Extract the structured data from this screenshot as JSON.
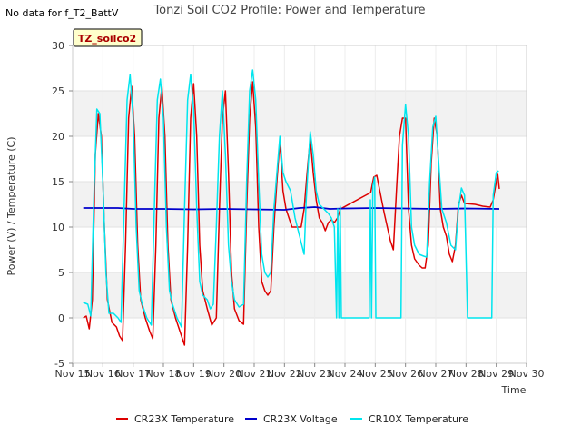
{
  "chart_data": {
    "type": "line",
    "title": "Tonzi Soil CO2 Profile: Power and Temperature",
    "note": "No data for f_T2_BattV",
    "badge": "TZ_soilco2",
    "xlabel": "Time",
    "ylabel": "Power (V) / Temperature (C)",
    "xlim": [
      15,
      30
    ],
    "ylim": [
      -5,
      30
    ],
    "x_ticks": [
      15,
      16,
      17,
      18,
      19,
      20,
      21,
      22,
      23,
      24,
      25,
      26,
      27,
      28,
      29,
      30
    ],
    "x_tick_labels": [
      "Nov 15",
      "Nov 16",
      "Nov 17",
      "Nov 18",
      "Nov 19",
      "Nov 20",
      "Nov 21",
      "Nov 22",
      "Nov 23",
      "Nov 24",
      "Nov 25",
      "Nov 26",
      "Nov 27",
      "Nov 28",
      "Nov 29",
      "Nov 30"
    ],
    "y_ticks": [
      -5,
      0,
      5,
      10,
      15,
      20,
      25,
      30
    ],
    "y_tick_labels": [
      "-5",
      "0",
      "5",
      "10",
      "15",
      "20",
      "25",
      "30"
    ],
    "legend_position": "bottom",
    "grid_bands": true,
    "series": [
      {
        "name": "CR23X Temperature",
        "color": "#dd0000",
        "points": [
          [
            15.35,
            0
          ],
          [
            15.45,
            0.2
          ],
          [
            15.55,
            -1.2
          ],
          [
            15.65,
            2
          ],
          [
            15.75,
            18
          ],
          [
            15.85,
            22.5
          ],
          [
            15.95,
            20
          ],
          [
            16.05,
            10
          ],
          [
            16.15,
            2
          ],
          [
            16.3,
            -0.5
          ],
          [
            16.45,
            -1
          ],
          [
            16.55,
            -2
          ],
          [
            16.65,
            -2.5
          ],
          [
            16.75,
            8
          ],
          [
            16.85,
            22
          ],
          [
            16.95,
            25.5
          ],
          [
            17.05,
            20
          ],
          [
            17.15,
            8
          ],
          [
            17.25,
            2
          ],
          [
            17.4,
            0
          ],
          [
            17.55,
            -1.5
          ],
          [
            17.65,
            -2.3
          ],
          [
            17.75,
            8
          ],
          [
            17.85,
            22
          ],
          [
            17.95,
            25.5
          ],
          [
            18.05,
            20
          ],
          [
            18.15,
            8
          ],
          [
            18.25,
            2
          ],
          [
            18.4,
            0
          ],
          [
            18.55,
            -1.5
          ],
          [
            18.7,
            -3
          ],
          [
            18.8,
            8
          ],
          [
            18.9,
            22
          ],
          [
            19.0,
            25.8
          ],
          [
            19.1,
            20
          ],
          [
            19.2,
            8
          ],
          [
            19.3,
            3
          ],
          [
            19.45,
            1
          ],
          [
            19.6,
            -0.8
          ],
          [
            19.75,
            0
          ],
          [
            19.85,
            12
          ],
          [
            19.95,
            22
          ],
          [
            20.05,
            25
          ],
          [
            20.15,
            16
          ],
          [
            20.25,
            5
          ],
          [
            20.35,
            1
          ],
          [
            20.5,
            -0.3
          ],
          [
            20.65,
            -0.7
          ],
          [
            20.75,
            12
          ],
          [
            20.85,
            22
          ],
          [
            20.95,
            26
          ],
          [
            21.05,
            21
          ],
          [
            21.15,
            10
          ],
          [
            21.25,
            4
          ],
          [
            21.35,
            3
          ],
          [
            21.45,
            2.5
          ],
          [
            21.55,
            3
          ],
          [
            21.65,
            10
          ],
          [
            21.75,
            15
          ],
          [
            21.85,
            19.5
          ],
          [
            21.95,
            14
          ],
          [
            22.05,
            12
          ],
          [
            22.15,
            11
          ],
          [
            22.25,
            10
          ],
          [
            22.4,
            10
          ],
          [
            22.55,
            10
          ],
          [
            22.65,
            12
          ],
          [
            22.75,
            16
          ],
          [
            22.85,
            19.8
          ],
          [
            22.95,
            16
          ],
          [
            23.05,
            13
          ],
          [
            23.15,
            11
          ],
          [
            23.25,
            10.5
          ],
          [
            23.35,
            9.6
          ],
          [
            23.45,
            10.5
          ],
          [
            23.55,
            10.8
          ],
          [
            23.65,
            10.5
          ],
          [
            23.75,
            11
          ],
          [
            23.85,
            12
          ],
          [
            24.85,
            13.8
          ],
          [
            24.95,
            15.5
          ],
          [
            25.05,
            15.7
          ],
          [
            25.3,
            11.5
          ],
          [
            25.5,
            8.5
          ],
          [
            25.6,
            7.5
          ],
          [
            25.7,
            14
          ],
          [
            25.8,
            20
          ],
          [
            25.9,
            22
          ],
          [
            26.0,
            22
          ],
          [
            26.1,
            12
          ],
          [
            26.2,
            8
          ],
          [
            26.3,
            6.5
          ],
          [
            26.45,
            5.8
          ],
          [
            26.55,
            5.5
          ],
          [
            26.65,
            5.5
          ],
          [
            26.75,
            8
          ],
          [
            26.85,
            17
          ],
          [
            26.95,
            22
          ],
          [
            27.05,
            20
          ],
          [
            27.15,
            12
          ],
          [
            27.25,
            10
          ],
          [
            27.35,
            9
          ],
          [
            27.45,
            7
          ],
          [
            27.55,
            6.2
          ],
          [
            27.65,
            8
          ],
          [
            27.75,
            12.5
          ],
          [
            27.85,
            13.5
          ],
          [
            27.95,
            12.6
          ],
          [
            28.3,
            12.5
          ],
          [
            28.55,
            12.3
          ],
          [
            28.8,
            12.2
          ],
          [
            28.9,
            13
          ],
          [
            29.0,
            15
          ],
          [
            29.05,
            15.8
          ],
          [
            29.1,
            14.2
          ]
        ]
      },
      {
        "name": "CR23X Voltage",
        "color": "#0000cc",
        "points": [
          [
            15.35,
            12.1
          ],
          [
            16.5,
            12.1
          ],
          [
            17.0,
            12.0
          ],
          [
            18.0,
            12.0
          ],
          [
            19.0,
            11.95
          ],
          [
            20.0,
            12.0
          ],
          [
            21.0,
            11.95
          ],
          [
            22.0,
            11.9
          ],
          [
            22.5,
            12.1
          ],
          [
            23.0,
            12.2
          ],
          [
            23.5,
            12.0
          ],
          [
            24.0,
            12.05
          ],
          [
            25.0,
            12.1
          ],
          [
            26.0,
            12.05
          ],
          [
            27.0,
            12.0
          ],
          [
            28.0,
            12.05
          ],
          [
            29.1,
            12.0
          ]
        ]
      },
      {
        "name": "CR10X Temperature",
        "color": "#00e5ee",
        "points": [
          [
            15.35,
            1.7
          ],
          [
            15.5,
            1.5
          ],
          [
            15.6,
            0.2
          ],
          [
            15.7,
            13
          ],
          [
            15.8,
            23
          ],
          [
            15.9,
            22.5
          ],
          [
            16.0,
            15
          ],
          [
            16.1,
            5
          ],
          [
            16.2,
            0.5
          ],
          [
            16.35,
            0.5
          ],
          [
            16.5,
            0
          ],
          [
            16.6,
            -0.5
          ],
          [
            16.7,
            12
          ],
          [
            16.8,
            24
          ],
          [
            16.9,
            26.8
          ],
          [
            17.0,
            22
          ],
          [
            17.1,
            10
          ],
          [
            17.2,
            3
          ],
          [
            17.3,
            1.5
          ],
          [
            17.45,
            0
          ],
          [
            17.6,
            -0.8
          ],
          [
            17.7,
            12
          ],
          [
            17.8,
            24
          ],
          [
            17.9,
            26.3
          ],
          [
            18.0,
            22
          ],
          [
            18.1,
            10
          ],
          [
            18.2,
            3
          ],
          [
            18.3,
            1.5
          ],
          [
            18.45,
            0
          ],
          [
            18.6,
            -1
          ],
          [
            18.7,
            12
          ],
          [
            18.8,
            24
          ],
          [
            18.9,
            26.8
          ],
          [
            19.0,
            23
          ],
          [
            19.1,
            12
          ],
          [
            19.2,
            4
          ],
          [
            19.3,
            2.5
          ],
          [
            19.45,
            2
          ],
          [
            19.55,
            1
          ],
          [
            19.65,
            1.5
          ],
          [
            19.75,
            10
          ],
          [
            19.85,
            20
          ],
          [
            19.95,
            25
          ],
          [
            20.05,
            18
          ],
          [
            20.15,
            8
          ],
          [
            20.25,
            4
          ],
          [
            20.35,
            2
          ],
          [
            20.5,
            1.2
          ],
          [
            20.65,
            1.5
          ],
          [
            20.75,
            15
          ],
          [
            20.85,
            25
          ],
          [
            20.95,
            27.3
          ],
          [
            21.05,
            24
          ],
          [
            21.15,
            15
          ],
          [
            21.25,
            7
          ],
          [
            21.35,
            5
          ],
          [
            21.45,
            4.5
          ],
          [
            21.55,
            5
          ],
          [
            21.65,
            12
          ],
          [
            21.75,
            16
          ],
          [
            21.85,
            20
          ],
          [
            21.95,
            16
          ],
          [
            22.05,
            15
          ],
          [
            22.2,
            14
          ],
          [
            22.35,
            11
          ],
          [
            22.5,
            9
          ],
          [
            22.65,
            7
          ],
          [
            22.72,
            13
          ],
          [
            22.85,
            20.5
          ],
          [
            22.95,
            18
          ],
          [
            23.05,
            14
          ],
          [
            23.15,
            12.5
          ],
          [
            23.3,
            12
          ],
          [
            23.45,
            11.5
          ],
          [
            23.55,
            11
          ],
          [
            23.65,
            10
          ],
          [
            23.72,
            0
          ],
          [
            23.76,
            12
          ],
          [
            23.8,
            0
          ],
          [
            23.84,
            12.3
          ],
          [
            23.88,
            0
          ],
          [
            24.8,
            0
          ],
          [
            24.84,
            13
          ],
          [
            24.88,
            0
          ],
          [
            24.92,
            14.5
          ],
          [
            24.98,
            15.5
          ],
          [
            25.02,
            0
          ],
          [
            25.85,
            0
          ],
          [
            25.9,
            19
          ],
          [
            26.0,
            23.5
          ],
          [
            26.1,
            20
          ],
          [
            26.2,
            10
          ],
          [
            26.3,
            8
          ],
          [
            26.45,
            7
          ],
          [
            26.6,
            6.8
          ],
          [
            26.7,
            6.7
          ],
          [
            26.8,
            15
          ],
          [
            26.9,
            21
          ],
          [
            27.0,
            22.2
          ],
          [
            27.1,
            17
          ],
          [
            27.2,
            12
          ],
          [
            27.35,
            10.5
          ],
          [
            27.5,
            8
          ],
          [
            27.65,
            7.5
          ],
          [
            27.75,
            12
          ],
          [
            27.85,
            14.3
          ],
          [
            27.95,
            13.5
          ],
          [
            28.05,
            0
          ],
          [
            28.85,
            0
          ],
          [
            28.9,
            13.5
          ],
          [
            29.0,
            16
          ],
          [
            29.08,
            16.2
          ]
        ]
      }
    ]
  }
}
